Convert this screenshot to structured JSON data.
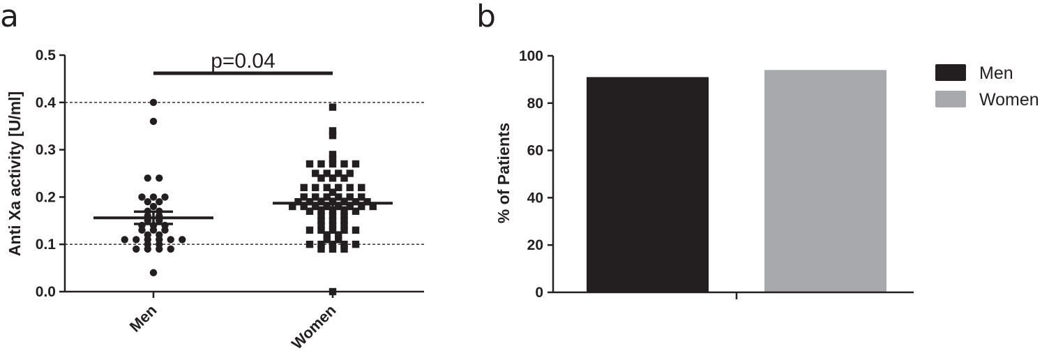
{
  "panels": {
    "a_label": "a",
    "b_label": "b"
  },
  "chart_data": [
    {
      "type": "scatter",
      "panel": "a",
      "title": "",
      "xlabel": "",
      "ylabel": "Anti Xa activity [U/ml]",
      "ylim": [
        0,
        0.5
      ],
      "yticks": [
        "0.0",
        "0.1",
        "0.2",
        "0.3",
        "0.4",
        "0.5"
      ],
      "categories": [
        "Men",
        "Women"
      ],
      "reference_lines": [
        0.1,
        0.4
      ],
      "annotation": {
        "text": "p=0.04",
        "between": [
          "Men",
          "Women"
        ]
      },
      "series": [
        {
          "name": "Men",
          "marker": "circle",
          "mean": 0.156,
          "sem": 0.013,
          "values": [
            0.4,
            0.36,
            0.24,
            0.24,
            0.2,
            0.2,
            0.19,
            0.19,
            0.2,
            0.18,
            0.17,
            0.17,
            0.16,
            0.16,
            0.15,
            0.15,
            0.14,
            0.14,
            0.14,
            0.13,
            0.13,
            0.13,
            0.12,
            0.12,
            0.11,
            0.11,
            0.11,
            0.11,
            0.11,
            0.11,
            0.1,
            0.1,
            0.09,
            0.09,
            0.09,
            0.09,
            0.04
          ]
        },
        {
          "name": "Women",
          "marker": "square",
          "mean": 0.187,
          "sem": 0.009,
          "values": [
            0.39,
            0.34,
            0.33,
            0.29,
            0.28,
            0.27,
            0.27,
            0.27,
            0.27,
            0.27,
            0.25,
            0.25,
            0.25,
            0.25,
            0.24,
            0.24,
            0.24,
            0.22,
            0.22,
            0.22,
            0.22,
            0.22,
            0.22,
            0.21,
            0.2,
            0.2,
            0.2,
            0.2,
            0.2,
            0.2,
            0.19,
            0.19,
            0.19,
            0.19,
            0.19,
            0.19,
            0.19,
            0.18,
            0.18,
            0.18,
            0.18,
            0.18,
            0.18,
            0.18,
            0.18,
            0.17,
            0.17,
            0.17,
            0.17,
            0.17,
            0.16,
            0.16,
            0.16,
            0.15,
            0.15,
            0.15,
            0.14,
            0.14,
            0.14,
            0.13,
            0.13,
            0.13,
            0.13,
            0.13,
            0.12,
            0.12,
            0.11,
            0.11,
            0.1,
            0.1,
            0.1,
            0.1,
            0.1,
            0.09,
            0.09,
            0.09,
            0.0
          ]
        }
      ]
    },
    {
      "type": "bar",
      "panel": "b",
      "title": "",
      "xlabel": "",
      "ylabel": "% of Patients",
      "ylim": [
        0,
        100
      ],
      "yticks": [
        "0",
        "20",
        "40",
        "60",
        "80",
        "100"
      ],
      "legend_position": "right",
      "series": [
        {
          "name": "Men",
          "value": 91,
          "color": "#231f20"
        },
        {
          "name": "Women",
          "value": 94,
          "color": "#a7a9ac"
        }
      ]
    }
  ]
}
